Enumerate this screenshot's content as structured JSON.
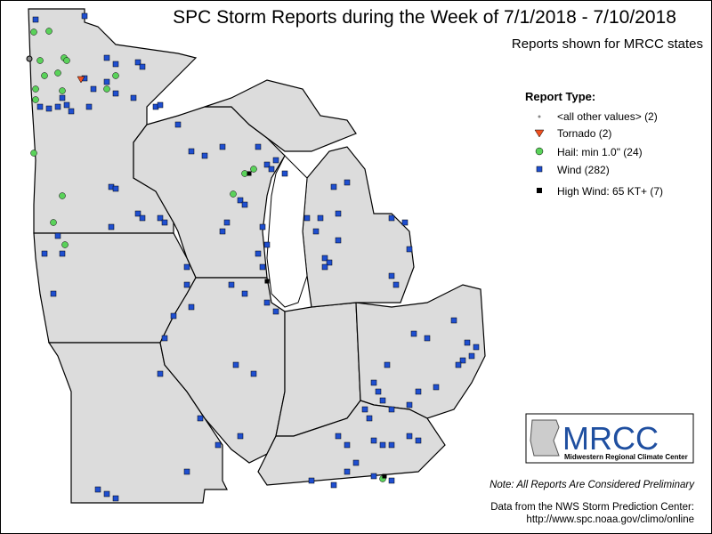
{
  "header": {
    "title": "SPC Storm Reports during the Week of 7/1/2018 - 7/10/2018",
    "subtitle": "Reports shown for MRCC states"
  },
  "legend": {
    "title": "Report Type:",
    "items": [
      {
        "label": "<all other values> (2)"
      },
      {
        "label": "Tornado (2)"
      },
      {
        "label": "Hail: min 1.0\" (24)"
      },
      {
        "label": "Wind (282)"
      },
      {
        "label": "High Wind: 65 KT+ (7)"
      }
    ]
  },
  "logo": {
    "name": "MRCC",
    "subtitle": "Midwestern Regional Climate Center"
  },
  "note": "Note: All Reports Are Considered Preliminary",
  "source": {
    "line1": "Data from the NWS Storm Prediction Center:",
    "line2": "http://www.spc.noaa.gov/climo/online"
  }
}
